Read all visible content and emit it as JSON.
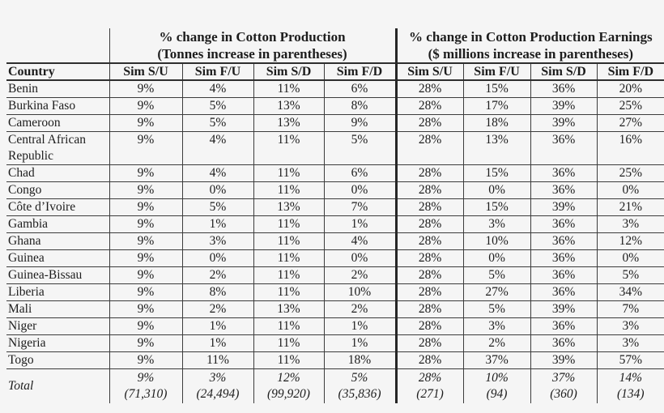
{
  "page": {
    "background": "#f5f5f5",
    "text_color": "#1d1d1d",
    "line_color": "#3c3c3c",
    "thick_divider_color": "#262626"
  },
  "table": {
    "group_headers": [
      {
        "line1": "% change in Cotton Production",
        "line2": "(Tonnes increase in parentheses)"
      },
      {
        "line1": "% change in Cotton Production Earnings",
        "line2": "($ millions increase in parentheses)"
      }
    ],
    "country_header": "Country",
    "sim_headers": [
      "Sim S/U",
      "Sim F/U",
      "Sim S/D",
      "Sim F/D",
      "Sim S/U",
      "Sim F/U",
      "Sim S/D",
      "Sim F/D"
    ],
    "rows": [
      {
        "country": "Benin",
        "values": [
          "9%",
          "4%",
          "11%",
          "6%",
          "28%",
          "15%",
          "36%",
          "20%"
        ]
      },
      {
        "country": "Burkina Faso",
        "values": [
          "9%",
          "5%",
          "13%",
          "8%",
          "28%",
          "17%",
          "39%",
          "25%"
        ]
      },
      {
        "country": "Cameroon",
        "values": [
          "9%",
          "5%",
          "13%",
          "9%",
          "28%",
          "18%",
          "39%",
          "27%"
        ]
      },
      {
        "country": "Central African Republic",
        "values": [
          "9%",
          "4%",
          "11%",
          "5%",
          "28%",
          "13%",
          "36%",
          "16%"
        ]
      },
      {
        "country": "Chad",
        "values": [
          "9%",
          "4%",
          "11%",
          "6%",
          "28%",
          "15%",
          "36%",
          "25%"
        ]
      },
      {
        "country": "Congo",
        "values": [
          "9%",
          "0%",
          "11%",
          "0%",
          "28%",
          "0%",
          "36%",
          "0%"
        ]
      },
      {
        "country": "Côte d’Ivoire",
        "values": [
          "9%",
          "5%",
          "13%",
          "7%",
          "28%",
          "15%",
          "39%",
          "21%"
        ]
      },
      {
        "country": "Gambia",
        "values": [
          "9%",
          "1%",
          "11%",
          "1%",
          "28%",
          "3%",
          "36%",
          "3%"
        ]
      },
      {
        "country": "Ghana",
        "values": [
          "9%",
          "3%",
          "11%",
          "4%",
          "28%",
          "10%",
          "36%",
          "12%"
        ]
      },
      {
        "country": "Guinea",
        "values": [
          "9%",
          "0%",
          "11%",
          "0%",
          "28%",
          "0%",
          "36%",
          "0%"
        ]
      },
      {
        "country": "Guinea-Bissau",
        "values": [
          "9%",
          "2%",
          "11%",
          "2%",
          "28%",
          "5%",
          "36%",
          "5%"
        ]
      },
      {
        "country": "Liberia",
        "values": [
          "9%",
          "8%",
          "11%",
          "10%",
          "28%",
          "27%",
          "36%",
          "34%"
        ]
      },
      {
        "country": "Mali",
        "values": [
          "9%",
          "2%",
          "13%",
          "2%",
          "28%",
          "5%",
          "39%",
          "7%"
        ]
      },
      {
        "country": "Niger",
        "values": [
          "9%",
          "1%",
          "11%",
          "1%",
          "28%",
          "3%",
          "36%",
          "3%"
        ]
      },
      {
        "country": "Nigeria",
        "values": [
          "9%",
          "1%",
          "11%",
          "1%",
          "28%",
          "2%",
          "36%",
          "3%"
        ]
      },
      {
        "country": "Togo",
        "values": [
          "9%",
          "11%",
          "11%",
          "18%",
          "28%",
          "37%",
          "39%",
          "57%"
        ]
      }
    ],
    "total": {
      "label": "Total",
      "values": [
        {
          "pct": "9%",
          "abs": "(71,310)"
        },
        {
          "pct": "3%",
          "abs": "(24,494)"
        },
        {
          "pct": "12%",
          "abs": "(99,920)"
        },
        {
          "pct": "5%",
          "abs": "(35,836)"
        },
        {
          "pct": "28%",
          "abs": "(271)"
        },
        {
          "pct": "10%",
          "abs": "(94)"
        },
        {
          "pct": "37%",
          "abs": "(360)"
        },
        {
          "pct": "14%",
          "abs": "(134)"
        }
      ]
    }
  }
}
